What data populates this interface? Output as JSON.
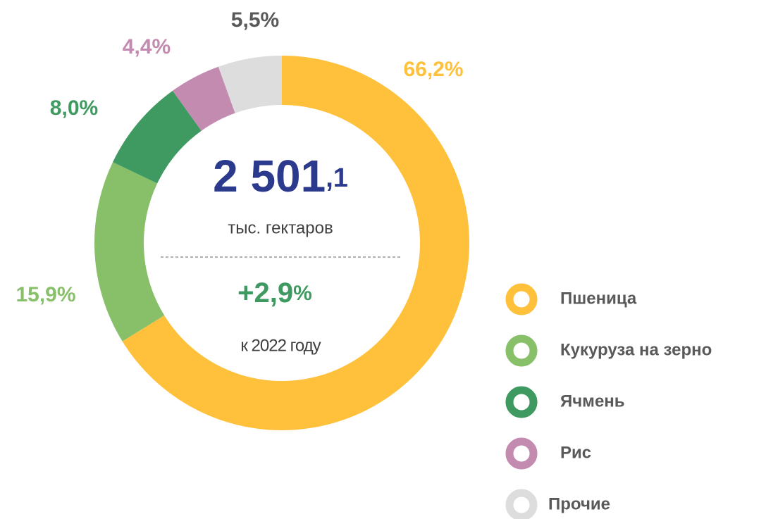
{
  "chart_data": {
    "type": "donut",
    "categories": [
      "Пшеница",
      "Кукуруза на зерно",
      "Ячмень",
      "Рис",
      "Прочие"
    ],
    "values": [
      66.2,
      15.9,
      8.0,
      4.4,
      5.5
    ],
    "value_labels": [
      "66,2%",
      "15,9%",
      "8,0%",
      "4,4%",
      "5,5%"
    ],
    "colors": [
      "#FFC13B",
      "#88C06A",
      "#3F9A62",
      "#C48BB0",
      "#DDDDDD"
    ],
    "label_colors": [
      "#FFC13B",
      "#88C06A",
      "#3F9A62",
      "#C48BB0",
      "#595959"
    ],
    "total": "2 501,1",
    "total_unit": "тыс. гектаров",
    "change": "+2,9%",
    "change_note": "к 2022 году"
  }
}
